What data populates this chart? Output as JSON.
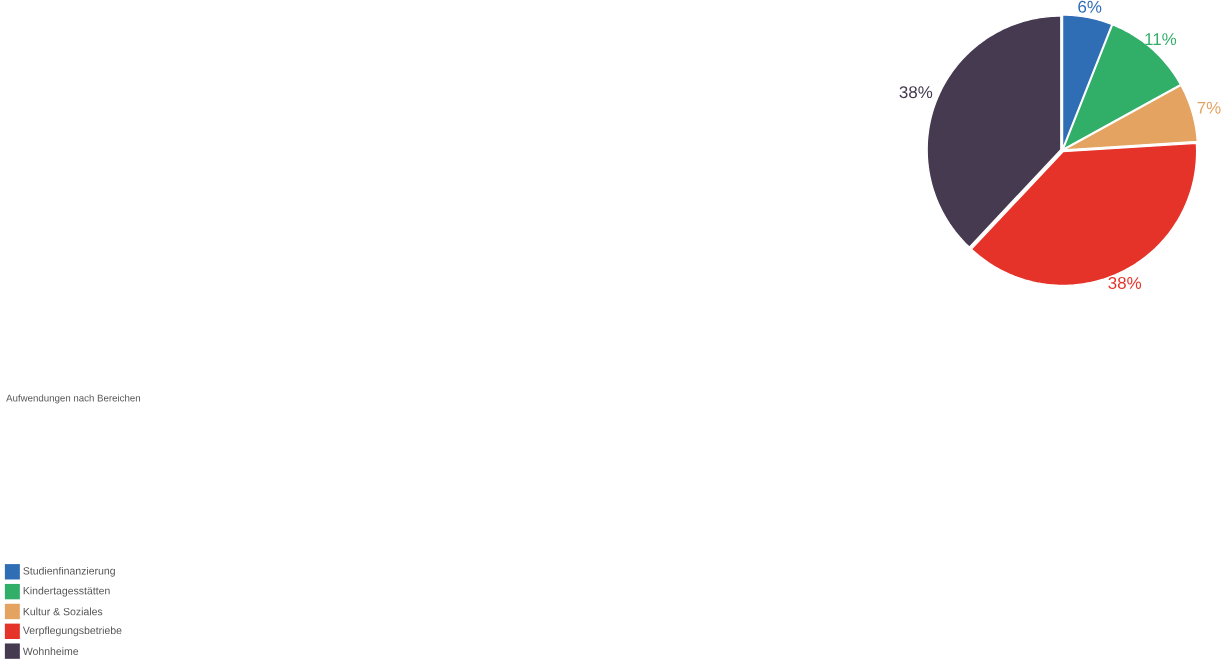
{
  "chart_data": {
    "type": "pie",
    "title": "Aufwendungen nach Bereichen",
    "categories": [
      "Studienfinanzierung",
      "Kindertagesstätten",
      "Kultur & Soziales",
      "Verpflegungsbetriebe",
      "Wohnheime"
    ],
    "values": [
      6,
      11,
      7,
      38,
      38
    ],
    "colors": [
      "#2f6db5",
      "#31ae68",
      "#e4a360",
      "#e6332a",
      "#463a51"
    ],
    "value_labels": [
      "6%",
      "11%",
      "7%",
      "38%",
      "38%"
    ],
    "legend": "bottom left"
  }
}
